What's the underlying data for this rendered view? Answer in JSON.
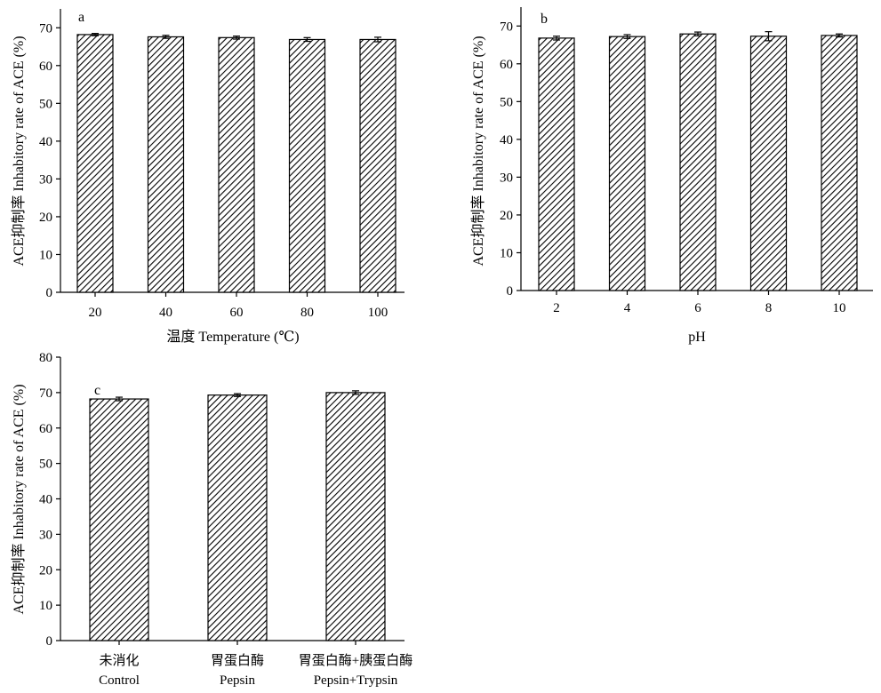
{
  "chart_data": [
    {
      "panel_label": "a",
      "type": "bar",
      "categories": [
        "20",
        "40",
        "60",
        "80",
        "100"
      ],
      "values": [
        68.2,
        67.6,
        67.4,
        66.9,
        66.9
      ],
      "errors": [
        0.3,
        0.4,
        0.4,
        0.5,
        0.6
      ],
      "ylim": [
        0,
        75
      ],
      "yticks": [
        0,
        10,
        20,
        30,
        40,
        50,
        60,
        70
      ],
      "xlabel": "温度 Temperature (℃)",
      "ylabel": "ACE抑制率 Inhabitory rate of ACE (%)",
      "xlabel_lines": [],
      "legend": "none",
      "grid": false,
      "bar_fill": "diagonal-hatch",
      "bar_color": "#000000"
    },
    {
      "panel_label": "b",
      "type": "bar",
      "categories": [
        "2",
        "4",
        "6",
        "8",
        "10"
      ],
      "values": [
        66.8,
        67.2,
        67.9,
        67.3,
        67.5
      ],
      "errors": [
        0.5,
        0.5,
        0.5,
        1.2,
        0.4
      ],
      "ylim": [
        0,
        75
      ],
      "yticks": [
        0,
        10,
        20,
        30,
        40,
        50,
        60,
        70
      ],
      "xlabel": "pH",
      "ylabel": "ACE抑制率 Inhabitory rate of ACE (%)",
      "legend": "none",
      "grid": false,
      "bar_fill": "diagonal-hatch",
      "bar_color": "#000000"
    },
    {
      "panel_label": "c",
      "type": "bar",
      "categories": [
        "未消化",
        "胃蛋白酶",
        "胃蛋白酶+胰蛋白酶"
      ],
      "categories_en": [
        "Control",
        "Pepsin",
        "Pepsin+Trypsin"
      ],
      "values": [
        68.2,
        69.3,
        70.0
      ],
      "errors": [
        0.5,
        0.4,
        0.5
      ],
      "ylim": [
        0,
        80
      ],
      "yticks": [
        0,
        10,
        20,
        30,
        40,
        50,
        60,
        70,
        80
      ],
      "xlabel": "",
      "ylabel": "ACE抑制率 Inhabitory rate of ACE (%)",
      "legend": "none",
      "grid": false,
      "bar_fill": "diagonal-hatch",
      "bar_color": "#000000"
    }
  ]
}
